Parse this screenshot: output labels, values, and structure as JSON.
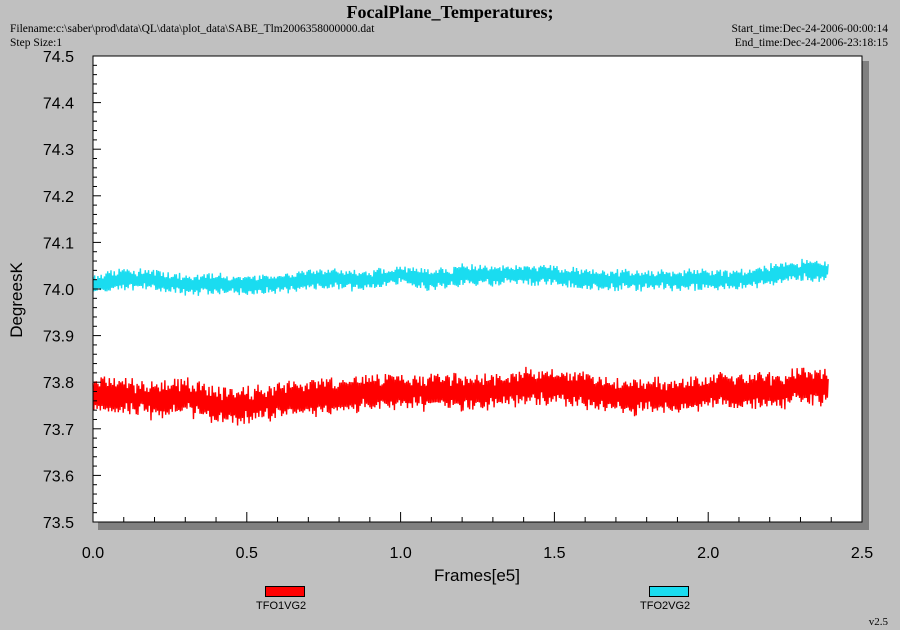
{
  "header": {
    "title": "FocalPlane_Temperatures;",
    "filename": "Filename:c:\\saber\\prod\\data\\QL\\data\\plot_data\\SABE_Tlm2006358000000.dat",
    "step_size": "Step Size:1",
    "start_time": "Start_time:Dec-24-2006-00:00:14",
    "end_time": "End_time:Dec-24-2006-23:18:15"
  },
  "footer": {
    "version": "v2.5"
  },
  "chart_data": {
    "type": "line",
    "title": "FocalPlane_Temperatures;",
    "xlabel": "Frames[e5]",
    "ylabel": "DegreesK",
    "xlim": [
      0,
      2.5
    ],
    "ylim": [
      73.5,
      74.5
    ],
    "x_ticks": [
      "0.0",
      "0.5",
      "1.0",
      "1.5",
      "2.0",
      "2.5"
    ],
    "y_ticks": [
      "73.5",
      "73.6",
      "73.7",
      "73.8",
      "73.9",
      "74.0",
      "74.1",
      "74.2",
      "74.3",
      "74.4",
      "74.5"
    ],
    "grid": false,
    "legend_position": "bottom",
    "x": [
      0.0,
      0.1,
      0.2,
      0.3,
      0.4,
      0.5,
      0.6,
      0.7,
      0.8,
      0.9,
      1.0,
      1.1,
      1.2,
      1.3,
      1.4,
      1.5,
      1.6,
      1.7,
      1.8,
      1.9,
      2.0,
      2.1,
      2.2,
      2.3,
      2.39
    ],
    "series": [
      {
        "name": "TFO1VG2",
        "color": "#ff0000",
        "values": [
          73.77,
          73.77,
          73.76,
          73.77,
          73.75,
          73.75,
          73.76,
          73.77,
          73.77,
          73.78,
          73.78,
          73.78,
          73.78,
          73.78,
          73.79,
          73.79,
          73.78,
          73.77,
          73.77,
          73.77,
          73.78,
          73.78,
          73.78,
          73.79,
          73.79
        ],
        "band": 0.035
      },
      {
        "name": "TFO2VG2",
        "color": "#1adcf0",
        "values": [
          74.01,
          74.02,
          74.02,
          74.01,
          74.01,
          74.01,
          74.01,
          74.02,
          74.02,
          74.02,
          74.03,
          74.02,
          74.03,
          74.03,
          74.03,
          74.03,
          74.02,
          74.02,
          74.02,
          74.02,
          74.02,
          74.02,
          74.03,
          74.04,
          74.04
        ],
        "band": 0.02
      }
    ]
  }
}
